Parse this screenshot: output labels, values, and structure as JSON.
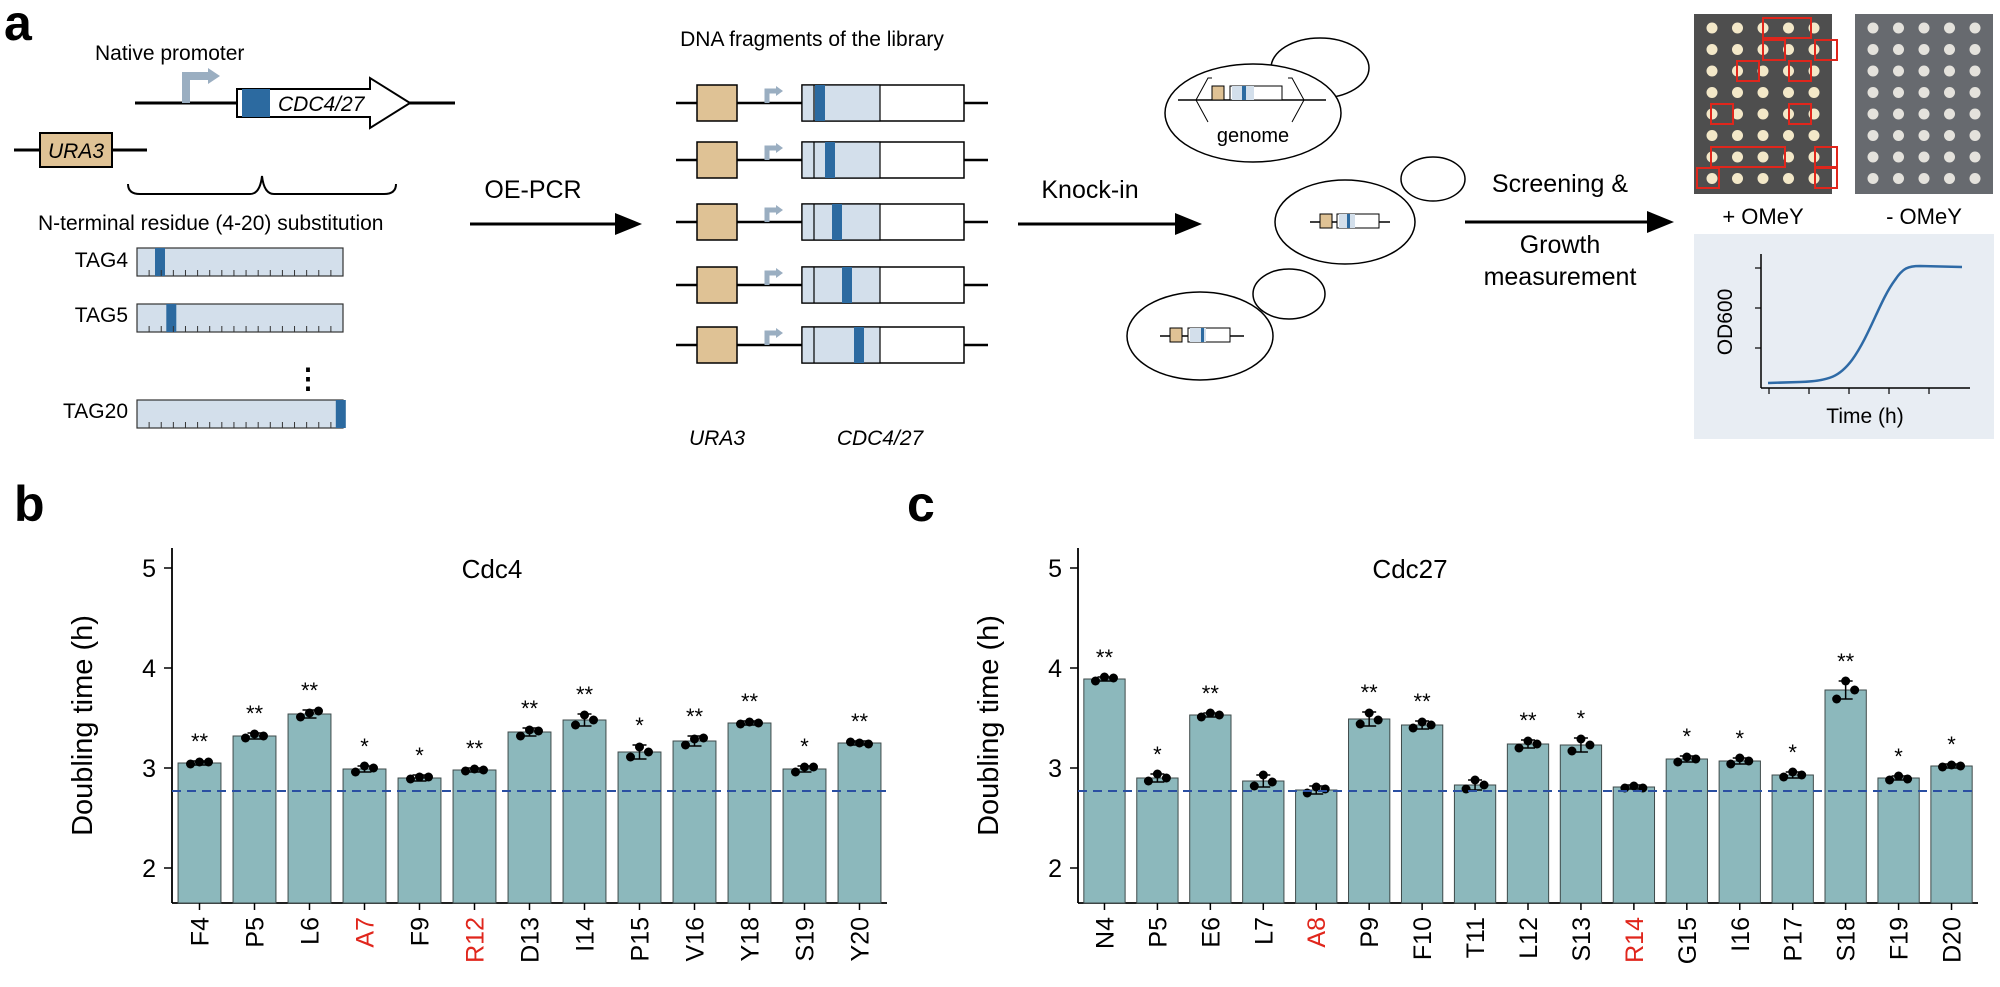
{
  "colors": {
    "bar": "#8cb8bc",
    "bar_edge": "#3e4a4a",
    "dna_blue": "#2c6aa0",
    "light_blue": "#d3dfeb",
    "tan": "#dfc295",
    "red": "#e0261c",
    "baseline": "#2a4fa2",
    "curve": "#2e6aa6",
    "plate_bg": "#4e4e4e",
    "panel_bg": "#e8edf3"
  },
  "panel_a": {
    "letter": "a",
    "native_promoter": "Native promoter",
    "gene": "CDC4/27",
    "ura3": "URA3",
    "substitution": "N-terminal residue (4-20) substitution",
    "tag_labels": [
      "TAG4",
      "TAG5",
      "TAG20"
    ],
    "ellipsis": "⋮",
    "oe_pcr": "OE-PCR",
    "library_title": "DNA fragments of the library",
    "lib_ura3": "URA3",
    "lib_gene": "CDC4/27",
    "knock_in": "Knock-in",
    "genome": "genome",
    "screening": "Screening &",
    "growth_1": "Growth",
    "growth_2": "measurement",
    "plus_omey": "+ OMeY",
    "minus_omey": "- OMeY",
    "od_label": "OD600",
    "time_label": "Time (h)"
  },
  "chart_data": [
    {
      "panel": "b",
      "type": "bar",
      "title": "Cdc4",
      "ylabel": "Doubling time (h)",
      "xlabel": "",
      "ylim": [
        1.65,
        5.2
      ],
      "yticks": [
        2,
        3,
        4,
        5
      ],
      "baseline": 2.77,
      "categories": [
        "F4",
        "P5",
        "L6",
        "A7",
        "F9",
        "R12",
        "D13",
        "I14",
        "P15",
        "V16",
        "Y18",
        "S19",
        "Y20"
      ],
      "highlight": [
        false,
        false,
        false,
        true,
        false,
        true,
        false,
        false,
        false,
        false,
        false,
        false,
        false
      ],
      "values": [
        3.05,
        3.32,
        3.54,
        2.99,
        2.9,
        2.98,
        3.36,
        3.48,
        3.16,
        3.27,
        3.45,
        2.99,
        3.25
      ],
      "errors": [
        0.02,
        0.03,
        0.04,
        0.03,
        0.03,
        0.02,
        0.04,
        0.06,
        0.07,
        0.05,
        0.02,
        0.03,
        0.02
      ],
      "points": [
        [
          3.04,
          3.06,
          3.06
        ],
        [
          3.3,
          3.34,
          3.32
        ],
        [
          3.51,
          3.55,
          3.57
        ],
        [
          2.96,
          3.02,
          3.0
        ],
        [
          2.89,
          2.91,
          2.91
        ],
        [
          2.97,
          2.99,
          2.98
        ],
        [
          3.32,
          3.38,
          3.37
        ],
        [
          3.43,
          3.53,
          3.48
        ],
        [
          3.11,
          3.21,
          3.16
        ],
        [
          3.23,
          3.29,
          3.3
        ],
        [
          3.44,
          3.46,
          3.45
        ],
        [
          2.96,
          3.01,
          3.01
        ],
        [
          3.26,
          3.25,
          3.24
        ]
      ],
      "significance": [
        "**",
        "**",
        "**",
        "*",
        "*",
        "**",
        "**",
        "**",
        "*",
        "**",
        "**",
        "*",
        "**"
      ]
    },
    {
      "panel": "c",
      "type": "bar",
      "title": "Cdc27",
      "ylabel": "Doubling time (h)",
      "xlabel": "",
      "ylim": [
        1.65,
        5.2
      ],
      "yticks": [
        2,
        3,
        4,
        5
      ],
      "baseline": 2.77,
      "categories": [
        "N4",
        "P5",
        "E6",
        "L7",
        "A8",
        "P9",
        "F10",
        "T11",
        "L12",
        "S13",
        "R14",
        "G15",
        "I16",
        "P17",
        "S18",
        "F19",
        "D20"
      ],
      "highlight": [
        false,
        false,
        false,
        false,
        true,
        false,
        false,
        false,
        false,
        false,
        true,
        false,
        false,
        false,
        false,
        false,
        false
      ],
      "values": [
        3.89,
        2.9,
        3.53,
        2.87,
        2.78,
        3.49,
        3.43,
        2.83,
        3.24,
        3.23,
        2.81,
        3.09,
        3.07,
        2.93,
        3.78,
        2.9,
        3.02
      ],
      "errors": [
        0.02,
        0.04,
        0.02,
        0.06,
        0.04,
        0.07,
        0.04,
        0.05,
        0.04,
        0.07,
        0.02,
        0.03,
        0.03,
        0.03,
        0.09,
        0.02,
        0.02
      ],
      "points": [
        [
          3.87,
          3.91,
          3.9
        ],
        [
          2.87,
          2.94,
          2.9
        ],
        [
          3.51,
          3.55,
          3.53
        ],
        [
          2.82,
          2.93,
          2.86
        ],
        [
          2.75,
          2.81,
          2.79
        ],
        [
          3.44,
          3.55,
          3.48
        ],
        [
          3.4,
          3.46,
          3.43
        ],
        [
          2.79,
          2.88,
          2.83
        ],
        [
          3.2,
          3.27,
          3.24
        ],
        [
          3.17,
          3.29,
          3.23
        ],
        [
          2.8,
          2.82,
          2.8
        ],
        [
          3.06,
          3.11,
          3.09
        ],
        [
          3.04,
          3.1,
          3.07
        ],
        [
          2.91,
          2.96,
          2.93
        ],
        [
          3.69,
          3.87,
          3.78
        ],
        [
          2.88,
          2.92,
          2.89
        ],
        [
          3.01,
          3.03,
          3.02
        ]
      ],
      "significance": [
        "**",
        "*",
        "**",
        "",
        "",
        "**",
        "**",
        "",
        "**",
        "*",
        "",
        "*",
        "*",
        "*",
        "**",
        "*",
        "*"
      ]
    }
  ]
}
